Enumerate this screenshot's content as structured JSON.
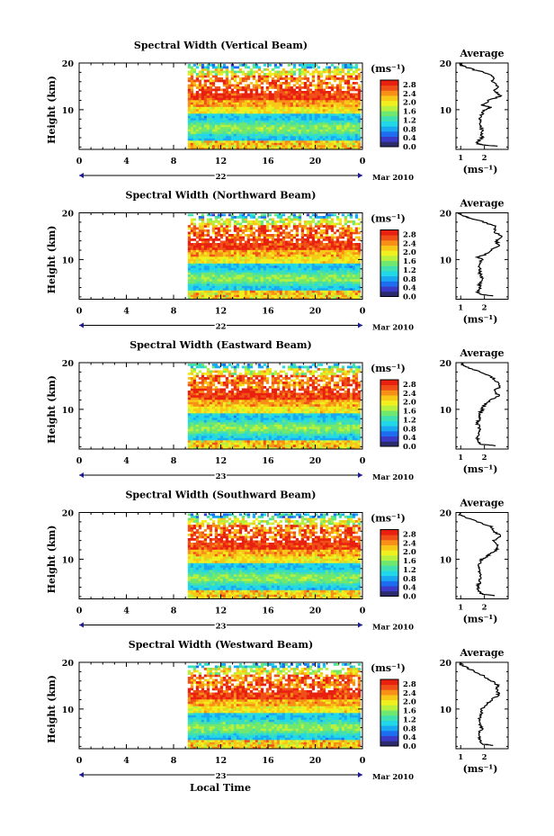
{
  "panels": [
    {
      "title": "Spectral Width (Vertical Beam)",
      "day": "22",
      "profile_x_ticks": [
        "1",
        "2"
      ]
    },
    {
      "title": "Spectral Width (Northward Beam)",
      "day": "22",
      "profile_x_ticks": [
        "1",
        "2"
      ]
    },
    {
      "title": "Spectral Width (Eastward Beam)",
      "day": "23",
      "profile_x_ticks": [
        "1",
        "2"
      ]
    },
    {
      "title": "Spectral Width (Southward Beam)",
      "day": "23",
      "profile_x_ticks": [
        "1",
        "2"
      ]
    },
    {
      "title": "Spectral Width (Westward Beam)",
      "day": "23",
      "profile_x_ticks": [
        "1",
        "2"
      ]
    }
  ],
  "labels": {
    "ylabel": "Height (km)",
    "xlabel": "Local Time",
    "unit": "(ms⁻¹)",
    "avg_title": "Average",
    "avg_xlabel": "(ms⁻¹)",
    "month": "Mar 2010"
  },
  "chart_data": {
    "type": "heatmap",
    "x": {
      "label": "Local Time",
      "ticks": [
        "0",
        "4",
        "8",
        "12",
        "16",
        "20",
        "0"
      ],
      "range": [
        0,
        24
      ]
    },
    "y": {
      "label": "Height (km)",
      "ticks": [
        "20",
        "10"
      ],
      "range": [
        1.5,
        20
      ]
    },
    "colorbar": {
      "ticks": [
        "2.8",
        "2.4",
        "2.0",
        "1.6",
        "1.2",
        "0.8",
        "0.4",
        "0.0"
      ],
      "range": [
        0,
        3.0
      ],
      "colors": [
        "#2b2b6e",
        "#3b3bc8",
        "#1e6cf0",
        "#1aa8f0",
        "#22d8e8",
        "#40e0b0",
        "#70e870",
        "#b8f040",
        "#f0f020",
        "#f8c818",
        "#f89018",
        "#f05018",
        "#e82010"
      ]
    },
    "data_start_hour": 9.2,
    "profile": {
      "title": "Average",
      "x_range": [
        0.8,
        3.0
      ],
      "y_range": [
        1.5,
        20
      ]
    },
    "series": [
      {
        "name": "Vertical Beam",
        "avg_profile": [
          [
            2.2,
            2.5
          ],
          [
            2.4,
            2.0
          ],
          [
            2.6,
            1.8
          ],
          [
            3.0,
            1.7
          ],
          [
            4,
            1.9
          ],
          [
            5,
            1.9
          ],
          [
            6,
            1.9
          ],
          [
            7,
            1.8
          ],
          [
            8,
            1.8
          ],
          [
            9,
            1.9
          ],
          [
            10,
            2.0
          ],
          [
            10.5,
            2.3
          ],
          [
            11,
            1.9
          ],
          [
            12,
            2.2
          ],
          [
            13,
            2.7
          ],
          [
            14,
            2.4
          ],
          [
            15,
            2.6
          ],
          [
            16,
            2.3
          ],
          [
            17,
            2.4
          ],
          [
            18,
            2.0
          ],
          [
            18.5,
            1.6
          ],
          [
            19,
            1.3
          ],
          [
            19.5,
            1.0
          ],
          [
            20,
            1.0
          ]
        ]
      },
      {
        "name": "Northward Beam",
        "avg_profile": [
          [
            2.2,
            2.4
          ],
          [
            2.5,
            1.9
          ],
          [
            3,
            1.7
          ],
          [
            4,
            1.8
          ],
          [
            5,
            1.8
          ],
          [
            6,
            1.9
          ],
          [
            7,
            1.8
          ],
          [
            8,
            1.8
          ],
          [
            9,
            1.8
          ],
          [
            10,
            1.9
          ],
          [
            10.5,
            1.7
          ],
          [
            11,
            2.0
          ],
          [
            12,
            2.3
          ],
          [
            13,
            2.6
          ],
          [
            14,
            2.5
          ],
          [
            15,
            2.7
          ],
          [
            16,
            2.4
          ],
          [
            17,
            2.5
          ],
          [
            18,
            2.0
          ],
          [
            19,
            1.3
          ],
          [
            19.5,
            1.0
          ],
          [
            20,
            0.95
          ]
        ]
      },
      {
        "name": "Eastward Beam",
        "avg_profile": [
          [
            2.2,
            2.5
          ],
          [
            2.5,
            1.9
          ],
          [
            3,
            1.7
          ],
          [
            4,
            1.7
          ],
          [
            5,
            1.8
          ],
          [
            6,
            1.8
          ],
          [
            7,
            1.7
          ],
          [
            8,
            1.8
          ],
          [
            9,
            1.8
          ],
          [
            10,
            1.9
          ],
          [
            11,
            2.0
          ],
          [
            12,
            2.3
          ],
          [
            13,
            2.6
          ],
          [
            14,
            2.4
          ],
          [
            15,
            2.7
          ],
          [
            16,
            2.5
          ],
          [
            17,
            2.3
          ],
          [
            18,
            1.8
          ],
          [
            19,
            1.3
          ],
          [
            19.5,
            1.1
          ],
          [
            20,
            1.0
          ]
        ]
      },
      {
        "name": "Southward Beam",
        "avg_profile": [
          [
            2.2,
            2.4
          ],
          [
            2.5,
            1.9
          ],
          [
            3,
            1.8
          ],
          [
            4,
            1.7
          ],
          [
            5,
            1.8
          ],
          [
            6,
            1.8
          ],
          [
            7,
            1.8
          ],
          [
            8,
            1.8
          ],
          [
            9,
            1.8
          ],
          [
            10,
            1.9
          ],
          [
            10.5,
            2.1
          ],
          [
            11,
            2.2
          ],
          [
            12,
            2.5
          ],
          [
            13,
            2.6
          ],
          [
            14,
            2.4
          ],
          [
            15,
            2.7
          ],
          [
            16,
            2.4
          ],
          [
            17,
            2.3
          ],
          [
            18,
            1.7
          ],
          [
            19,
            1.2
          ],
          [
            19.5,
            1.0
          ],
          [
            20,
            0.95
          ]
        ]
      },
      {
        "name": "Westward Beam",
        "avg_profile": [
          [
            2.2,
            2.4
          ],
          [
            2.5,
            1.9
          ],
          [
            3,
            1.8
          ],
          [
            4,
            1.8
          ],
          [
            5,
            1.8
          ],
          [
            6,
            1.9
          ],
          [
            7,
            1.8
          ],
          [
            8,
            1.8
          ],
          [
            9,
            1.9
          ],
          [
            10,
            1.9
          ],
          [
            11,
            2.1
          ],
          [
            12,
            2.3
          ],
          [
            13,
            2.6
          ],
          [
            14,
            2.5
          ],
          [
            15,
            2.6
          ],
          [
            16,
            2.3
          ],
          [
            17,
            2.0
          ],
          [
            18,
            1.6
          ],
          [
            19,
            1.2
          ],
          [
            19.5,
            1.0
          ],
          [
            20,
            0.95
          ]
        ]
      }
    ]
  }
}
